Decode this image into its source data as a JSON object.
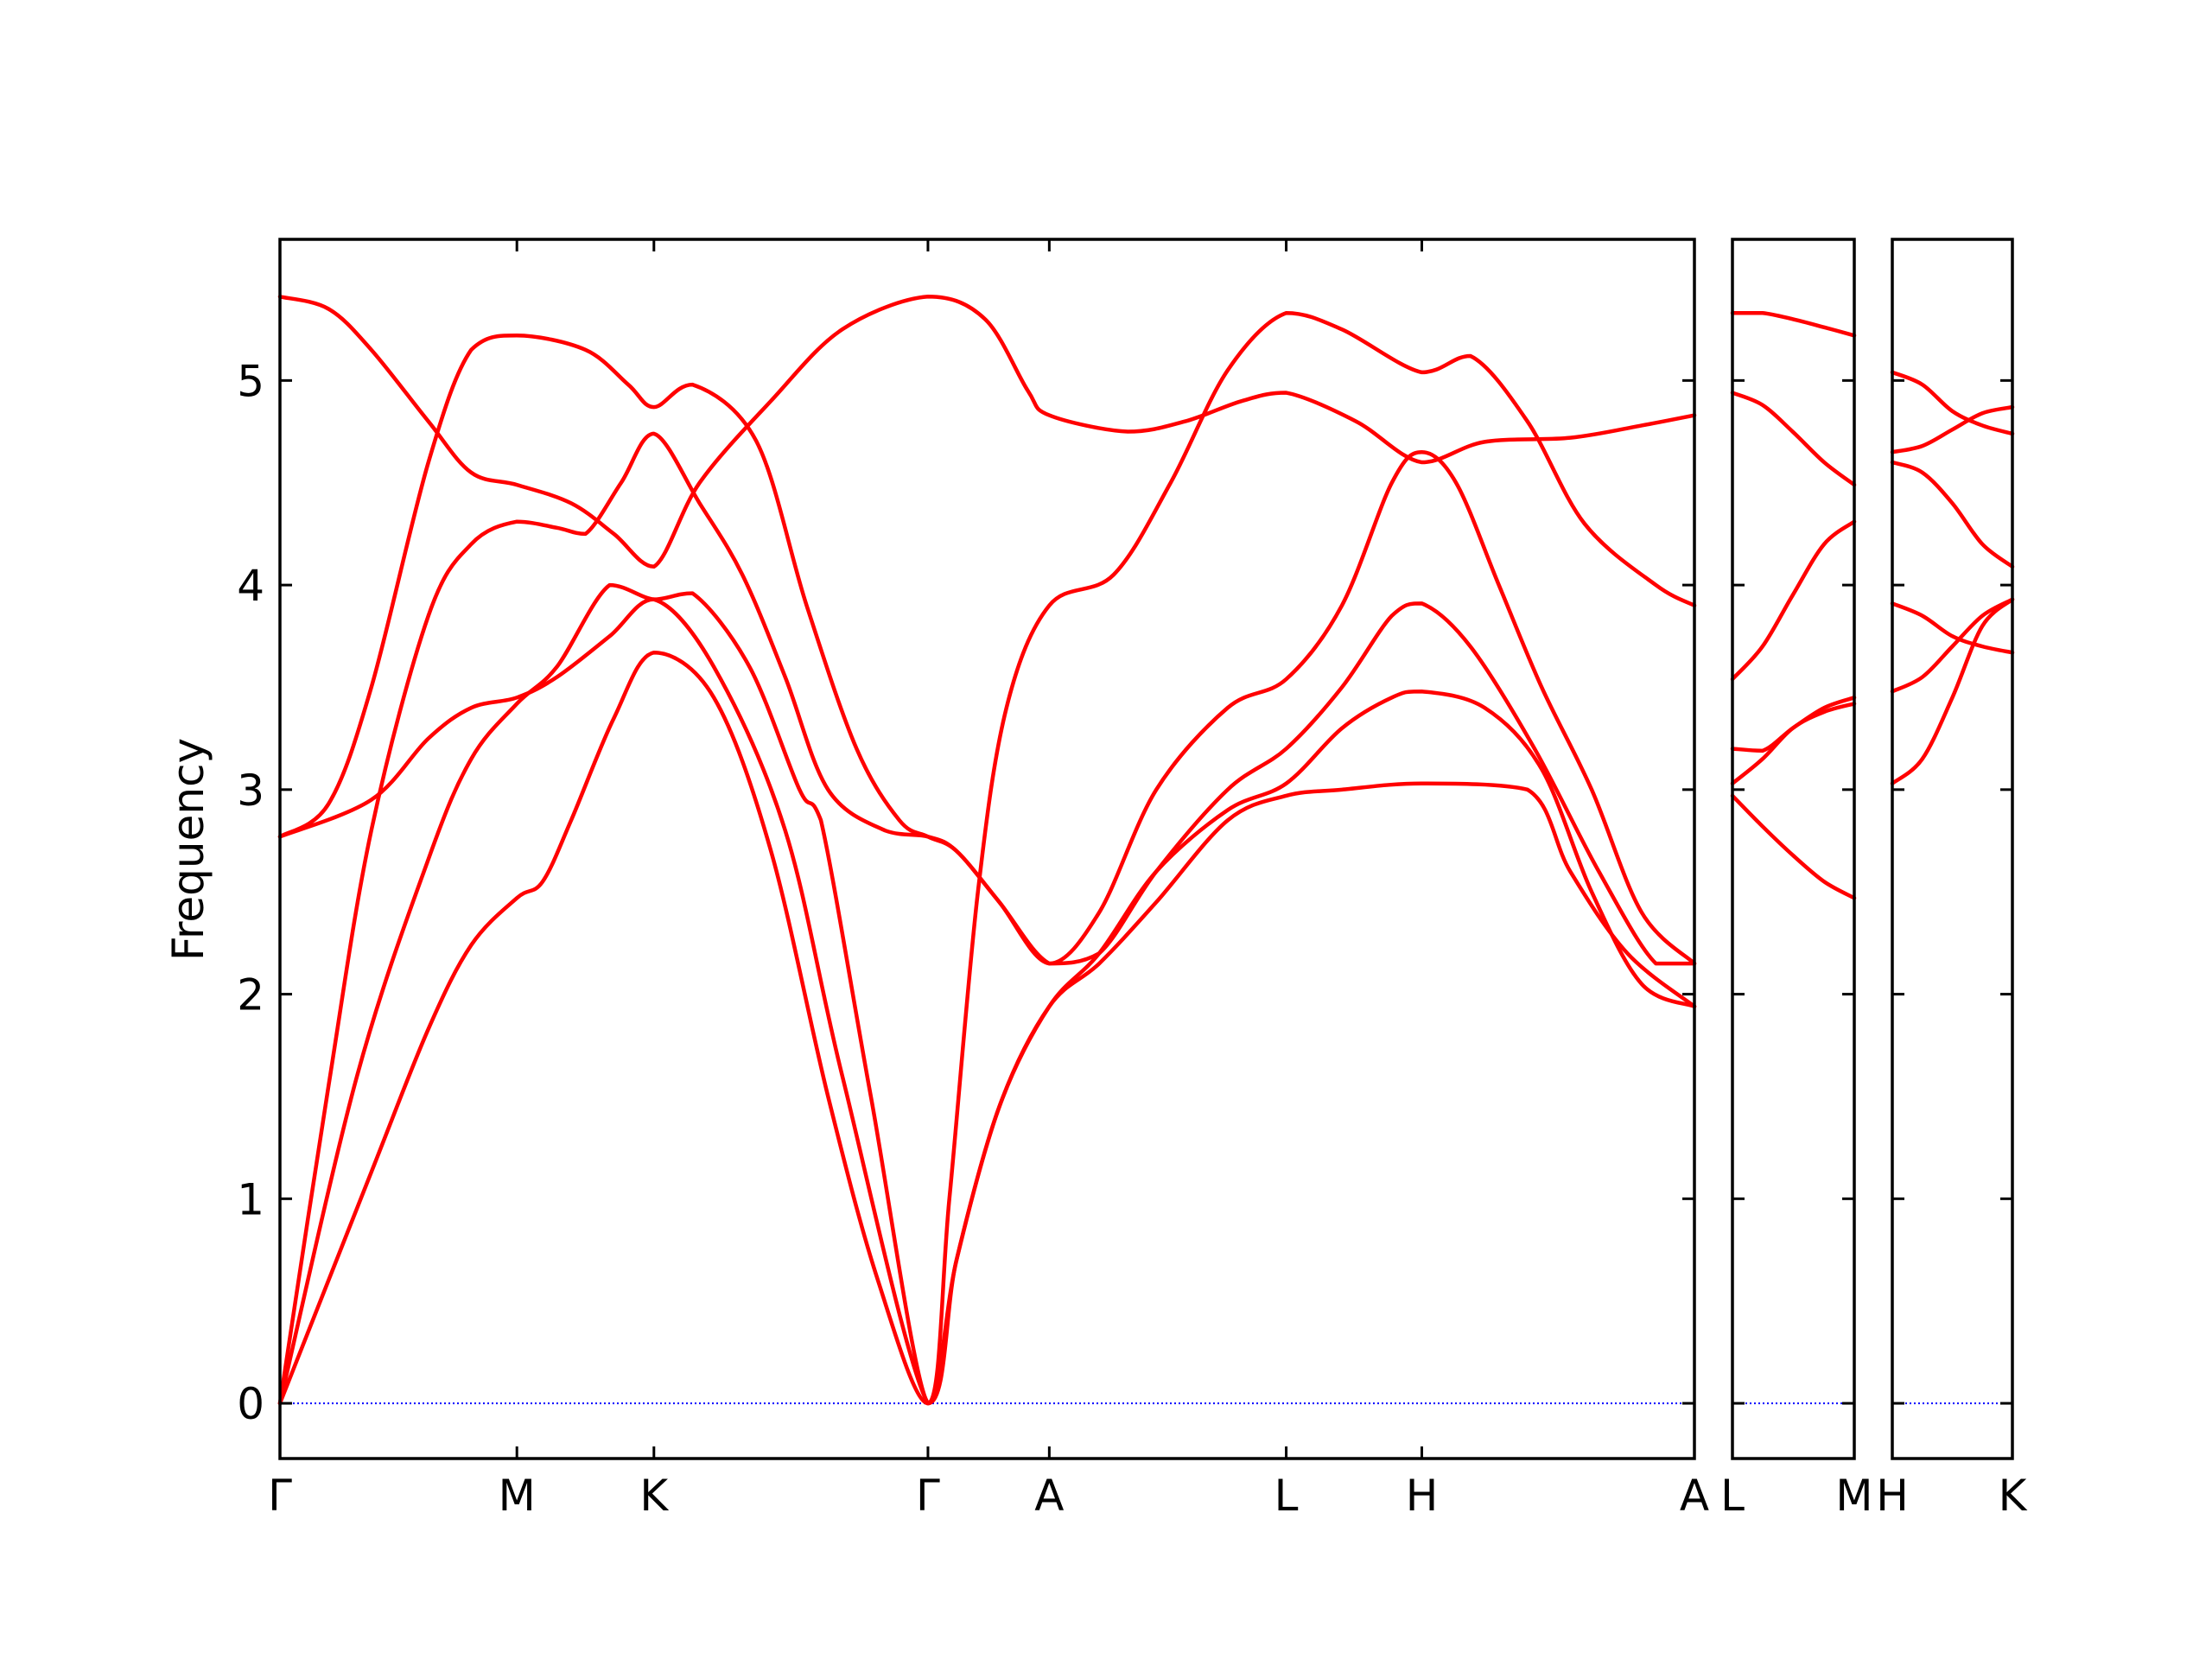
{
  "chart_data": [
    {
      "type": "line",
      "ylabel": "Frequency",
      "color": "#ff0000",
      "xlim": [
        0,
        9.91
      ],
      "xticks": [
        {
          "value": 0,
          "label": "Γ"
        },
        {
          "value": 1.66,
          "label": "M"
        },
        {
          "value": 2.62,
          "label": "K"
        },
        {
          "value": 4.54,
          "label": "Γ"
        },
        {
          "value": 5.39,
          "label": "A"
        },
        {
          "value": 7.05,
          "label": "L"
        },
        {
          "value": 8.0,
          "label": "H"
        },
        {
          "value": 9.91,
          "label": "A"
        }
      ],
      "ylim": [
        -0.27,
        5.69
      ],
      "yticks": [
        0,
        1,
        2,
        3,
        4,
        5
      ],
      "hline": 0,
      "hline_color": "#0000ff",
      "series": [
        {
          "x": [
            0,
            0.64,
            1.04,
            1.34,
            1.66,
            1.84,
            2.04,
            2.34,
            2.62,
            3.04,
            3.44,
            3.84,
            4.19,
            4.54,
            4.74,
            5.04,
            5.39,
            5.74,
            6.14,
            6.64,
            7.05,
            7.44,
            7.79,
            8.0,
            8.44,
            8.84,
            9.19,
            9.54,
            9.91
          ],
          "values": [
            0,
            1.13,
            1.83,
            2.24,
            2.47,
            2.55,
            2.85,
            3.35,
            3.67,
            3.45,
            2.7,
            1.5,
            0.6,
            0,
            0.7,
            1.45,
            1.94,
            2.2,
            2.6,
            2.9,
            3.03,
            3.3,
            3.45,
            3.48,
            3.4,
            3.1,
            2.5,
            2.05,
            1.94
          ]
        },
        {
          "x": [
            0,
            0.54,
            1.04,
            1.34,
            1.66,
            1.94,
            2.31,
            2.62,
            2.89,
            3.29,
            3.64,
            3.79,
            4.14,
            4.54,
            4.69,
            4.89,
            5.09,
            5.39,
            5.84,
            6.24,
            6.64,
            7.05,
            7.44,
            8.0,
            8.34,
            8.74,
            9.14,
            9.64,
            9.91
          ],
          "values": [
            0,
            1.6,
            2.66,
            3.15,
            3.42,
            3.6,
            4.0,
            3.93,
            3.96,
            3.6,
            3.0,
            2.85,
            1.5,
            0,
            1.0,
            2.5,
            3.4,
            3.9,
            4.05,
            4.5,
            5.05,
            5.33,
            5.25,
            5.04,
            5.12,
            4.8,
            4.3,
            4.0,
            3.9
          ]
        },
        {
          "x": [
            0,
            0.34,
            0.64,
            1.04,
            1.34,
            1.66,
            1.94,
            2.14,
            2.39,
            2.62,
            2.94,
            3.24,
            3.54,
            3.84,
            4.24,
            4.54,
            4.74,
            5.04,
            5.39,
            5.74,
            6.14,
            6.64,
            7.05,
            7.44,
            7.79,
            8.0,
            8.24,
            8.54,
            8.84,
            9.19,
            9.54,
            9.91
          ],
          "values": [
            0,
            1.55,
            2.8,
            3.85,
            4.2,
            4.31,
            4.28,
            4.25,
            4.5,
            4.74,
            4.4,
            4.05,
            3.55,
            3.0,
            2.8,
            2.77,
            2.7,
            2.45,
            2.15,
            2.4,
            3.0,
            3.4,
            3.54,
            3.9,
            4.5,
            4.65,
            4.5,
            4.0,
            3.5,
            3.0,
            2.4,
            2.15
          ]
        },
        {
          "x": [
            0,
            0.34,
            0.64,
            1.04,
            1.34,
            1.66,
            2.14,
            2.44,
            2.62,
            2.89,
            3.34,
            3.69,
            4.04,
            4.34,
            4.54,
            4.74,
            5.04,
            5.39,
            5.74,
            6.14,
            6.64,
            7.05,
            7.44,
            7.79,
            8.0,
            8.34,
            8.79,
            9.24,
            9.64,
            9.91
          ],
          "values": [
            2.77,
            2.93,
            3.5,
            4.6,
            5.15,
            5.22,
            5.15,
            4.98,
            4.87,
            4.98,
            4.7,
            3.9,
            3.2,
            2.85,
            2.77,
            2.7,
            2.45,
            2.15,
            2.2,
            2.6,
            3.0,
            3.2,
            3.5,
            3.85,
            3.91,
            3.7,
            3.2,
            2.6,
            2.15,
            2.15
          ]
        },
        {
          "x": [
            0,
            0.64,
            1.04,
            1.34,
            1.66,
            1.94,
            2.31,
            2.62,
            3.04,
            3.54,
            3.94,
            4.54,
            4.74,
            5.04,
            5.39,
            5.74,
            6.14,
            6.64,
            7.05,
            7.44,
            8.0,
            8.74,
            9.04,
            9.44,
            9.91
          ],
          "values": [
            2.77,
            2.95,
            3.25,
            3.4,
            3.45,
            3.55,
            3.75,
            3.93,
            3.6,
            2.8,
            1.6,
            0,
            0.7,
            1.45,
            1.94,
            2.15,
            2.45,
            2.85,
            2.97,
            3.0,
            3.03,
            3.0,
            2.6,
            2.2,
            1.94
          ]
        },
        {
          "x": [
            0,
            0.34,
            0.64,
            1.04,
            1.34,
            1.66,
            2.04,
            2.34,
            2.62,
            2.94,
            3.44,
            3.94,
            4.54,
            4.94,
            5.24,
            5.39,
            5.94,
            6.34,
            6.74,
            7.05,
            7.54,
            8.0,
            8.44,
            9.04,
            9.54,
            9.91
          ],
          "values": [
            5.41,
            5.35,
            5.15,
            4.8,
            4.55,
            4.49,
            4.4,
            4.25,
            4.09,
            4.5,
            4.9,
            5.25,
            5.41,
            5.3,
            4.95,
            4.83,
            4.75,
            4.8,
            4.9,
            4.94,
            4.8,
            4.6,
            4.7,
            4.72,
            4.78,
            4.83
          ]
        }
      ]
    },
    {
      "type": "line",
      "color": "#ff0000",
      "sharey": true,
      "xlim": [
        0,
        0.85
      ],
      "xticks": [
        {
          "value": 0,
          "label": "L"
        },
        {
          "value": 0.85,
          "label": "M"
        }
      ],
      "x": [
        0,
        0.21,
        0.42,
        0.64,
        0.85
      ],
      "series": [
        {
          "values": [
            5.33,
            5.33,
            5.3,
            5.26,
            5.22
          ]
        },
        {
          "values": [
            4.94,
            4.88,
            4.75,
            4.6,
            4.49
          ]
        },
        {
          "values": [
            3.54,
            3.7,
            3.95,
            4.2,
            4.31
          ]
        },
        {
          "values": [
            3.2,
            3.19,
            3.3,
            3.4,
            3.45
          ]
        },
        {
          "values": [
            3.03,
            3.15,
            3.3,
            3.38,
            3.42
          ]
        },
        {
          "values": [
            2.97,
            2.82,
            2.68,
            2.55,
            2.47
          ]
        }
      ]
    },
    {
      "type": "line",
      "color": "#ff0000",
      "sharey": true,
      "xlim": [
        0,
        0.84
      ],
      "xticks": [
        {
          "value": 0,
          "label": "H"
        },
        {
          "value": 0.84,
          "label": "K"
        }
      ],
      "x": [
        0,
        0.21,
        0.42,
        0.63,
        0.84
      ],
      "series": [
        {
          "values": [
            5.04,
            4.98,
            4.85,
            4.78,
            4.74
          ]
        },
        {
          "values": [
            4.65,
            4.68,
            4.76,
            4.84,
            4.87
          ]
        },
        {
          "values": [
            4.6,
            4.55,
            4.4,
            4.2,
            4.09
          ]
        },
        {
          "values": [
            3.91,
            3.85,
            3.75,
            3.7,
            3.67
          ]
        },
        {
          "values": [
            3.48,
            3.55,
            3.7,
            3.85,
            3.93
          ]
        },
        {
          "values": [
            3.03,
            3.15,
            3.45,
            3.8,
            3.93
          ]
        }
      ]
    }
  ]
}
